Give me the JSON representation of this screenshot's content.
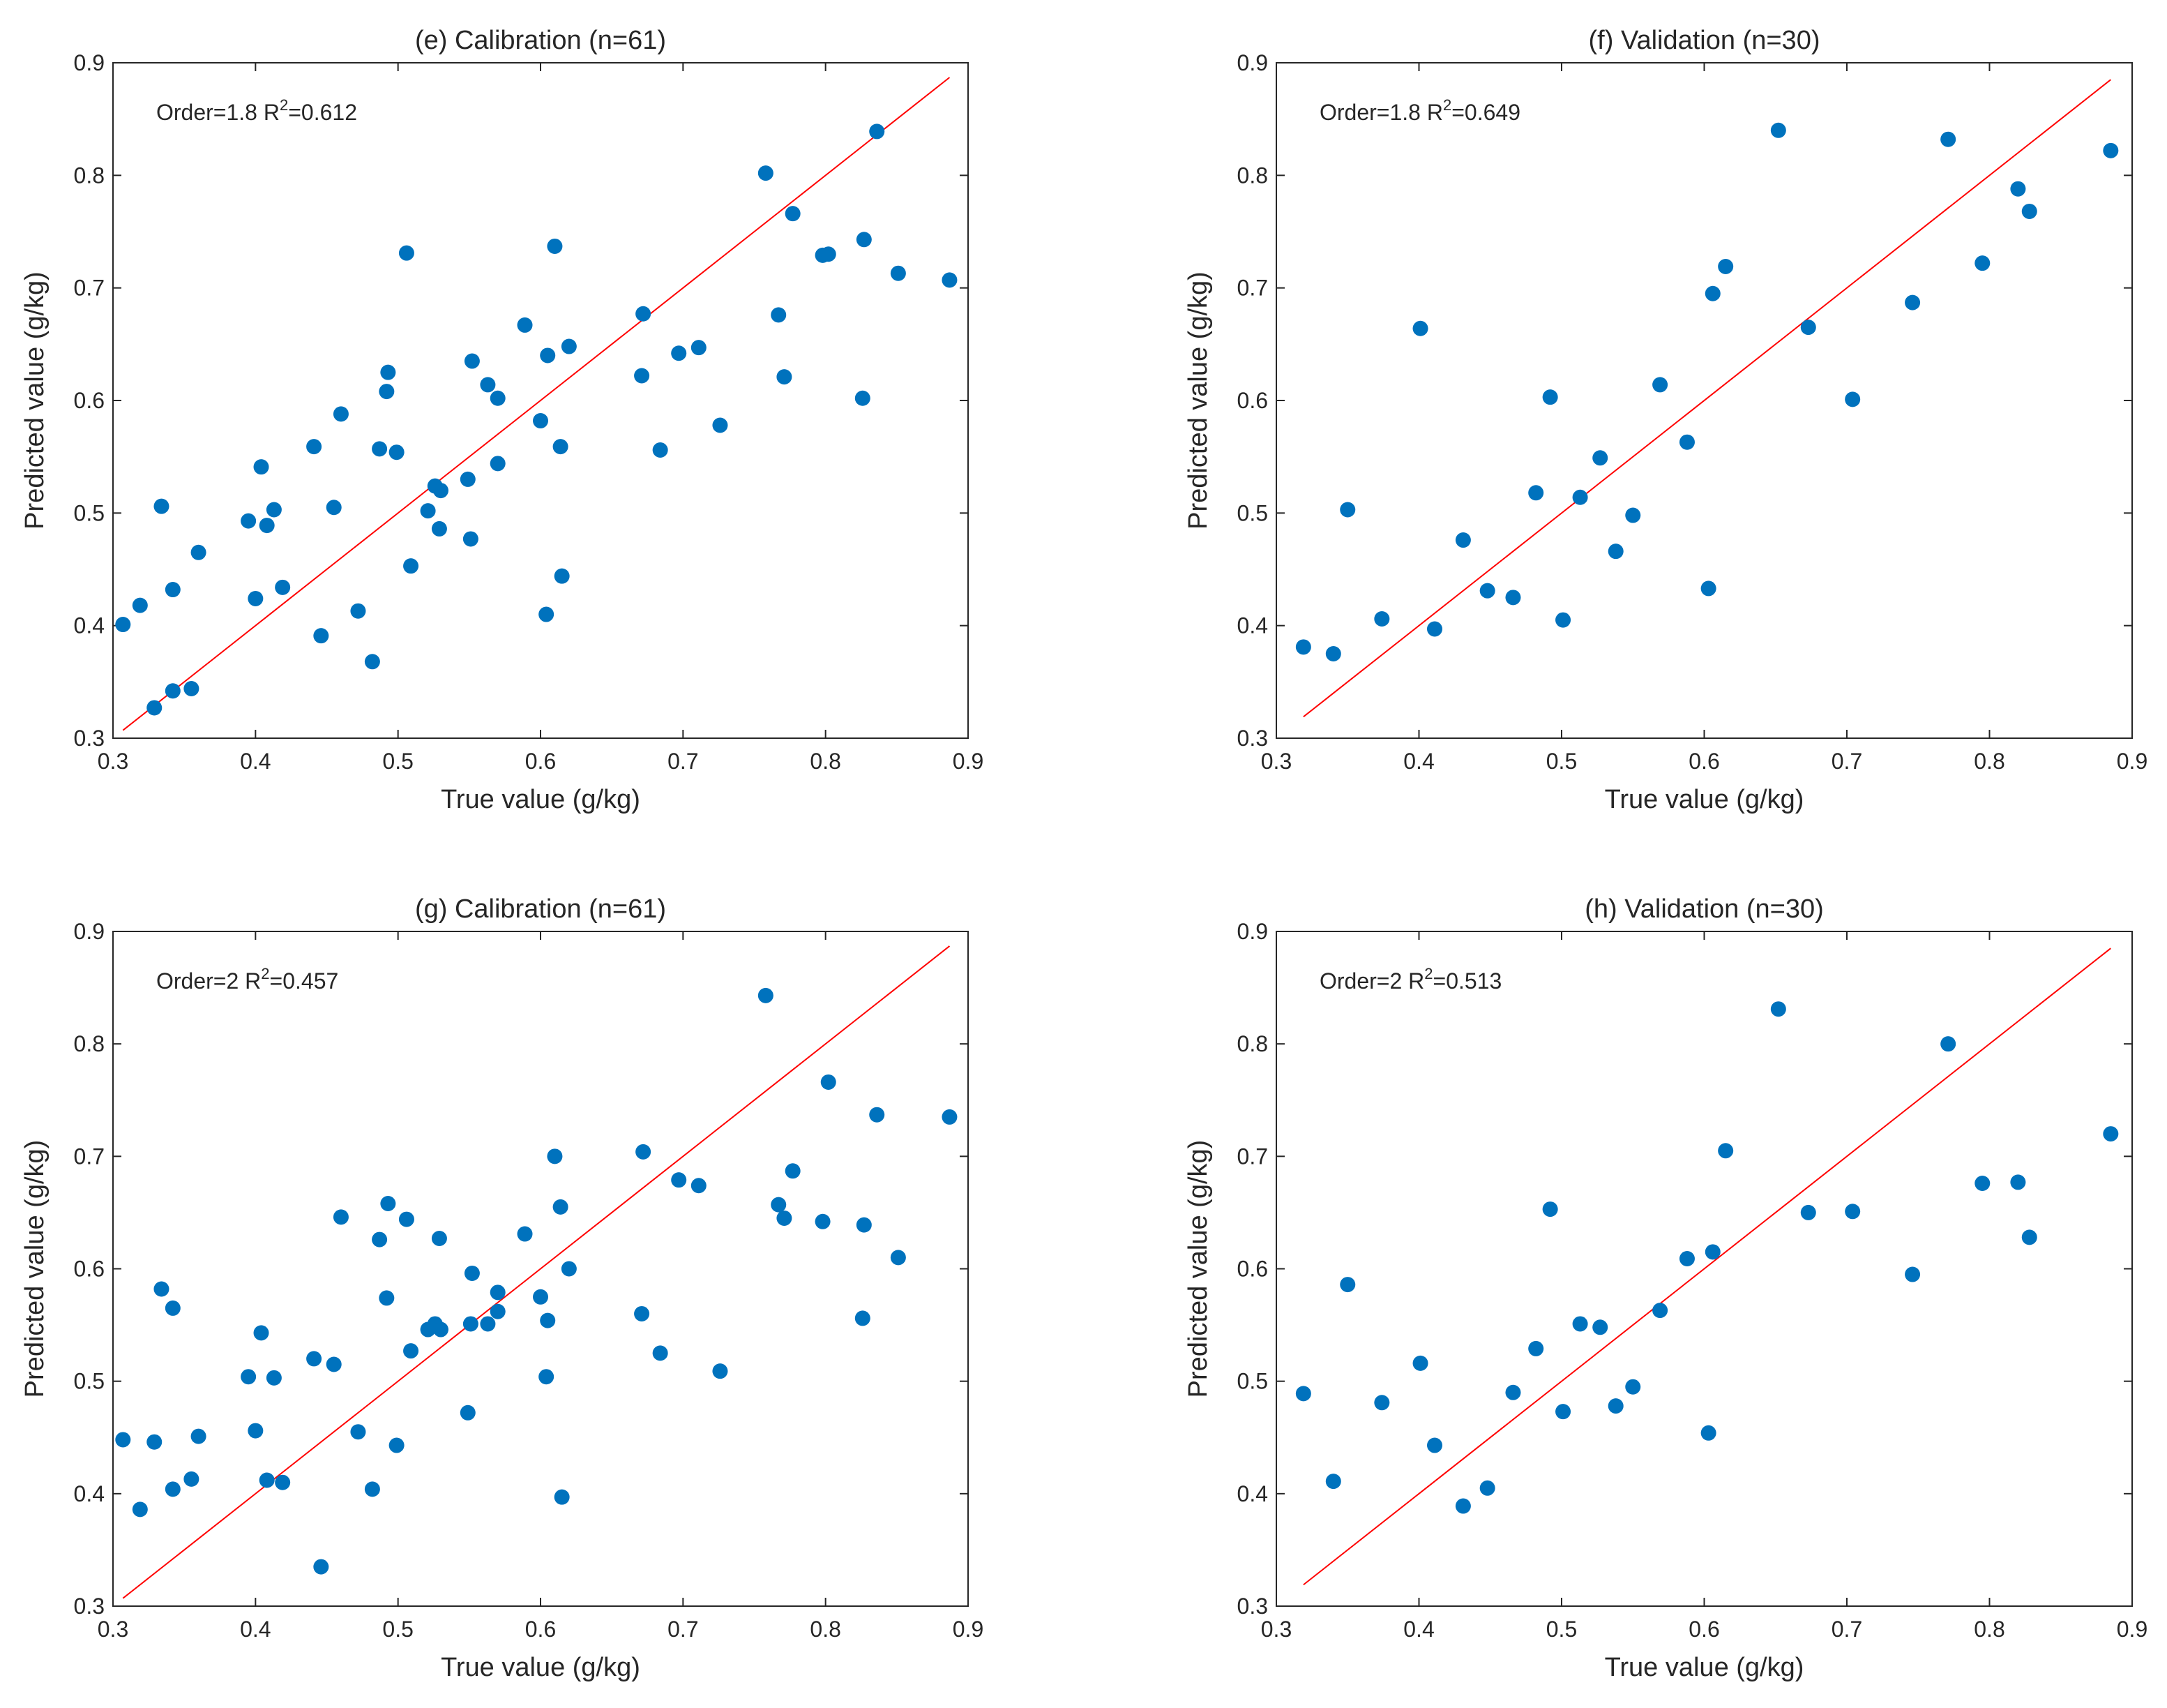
{
  "colors": {
    "marker": "#0072BD",
    "line": "#FF0000",
    "axis": "#262626"
  },
  "chart_data": [
    {
      "type": "scatter",
      "title": "(e) Calibration (n=61)",
      "xlabel": "True value (g/kg)",
      "ylabel": "Predicted value (g/kg)",
      "xlim": [
        0.3,
        0.9
      ],
      "ylim": [
        0.3,
        0.9
      ],
      "xticks": [
        "0.3",
        "0.4",
        "0.5",
        "0.6",
        "0.7",
        "0.8",
        "0.9"
      ],
      "yticks": [
        "0.3",
        "0.4",
        "0.5",
        "0.6",
        "0.7",
        "0.8",
        "0.9"
      ],
      "annotation": {
        "prefix": "Order=1.8  R",
        "sup": "2",
        "suffix": "=0.612"
      },
      "line": {
        "x": [
          0.307,
          0.887
        ],
        "y": [
          0.307,
          0.887
        ]
      },
      "points": {
        "x": [
          0.307,
          0.319,
          0.329,
          0.334,
          0.342,
          0.342,
          0.355,
          0.36,
          0.395,
          0.4,
          0.404,
          0.408,
          0.413,
          0.419,
          0.441,
          0.446,
          0.455,
          0.46,
          0.472,
          0.482,
          0.487,
          0.492,
          0.493,
          0.499,
          0.506,
          0.509,
          0.521,
          0.526,
          0.529,
          0.53,
          0.549,
          0.551,
          0.552,
          0.563,
          0.57,
          0.57,
          0.589,
          0.6,
          0.604,
          0.605,
          0.61,
          0.614,
          0.615,
          0.62,
          0.671,
          0.672,
          0.684,
          0.697,
          0.711,
          0.726,
          0.758,
          0.767,
          0.771,
          0.777,
          0.798,
          0.802,
          0.826,
          0.827,
          0.836,
          0.851,
          0.887
        ],
        "y": [
          0.401,
          0.418,
          0.327,
          0.506,
          0.342,
          0.432,
          0.344,
          0.465,
          0.493,
          0.424,
          0.541,
          0.489,
          0.503,
          0.434,
          0.559,
          0.391,
          0.505,
          0.588,
          0.413,
          0.368,
          0.557,
          0.608,
          0.625,
          0.554,
          0.731,
          0.453,
          0.502,
          0.524,
          0.486,
          0.52,
          0.53,
          0.477,
          0.635,
          0.614,
          0.602,
          0.544,
          0.667,
          0.582,
          0.41,
          0.64,
          0.737,
          0.559,
          0.444,
          0.648,
          0.622,
          0.677,
          0.556,
          0.642,
          0.647,
          0.578,
          0.802,
          0.676,
          0.621,
          0.766,
          0.729,
          0.73,
          0.602,
          0.743,
          0.839,
          0.713,
          0.707
        ]
      }
    },
    {
      "type": "scatter",
      "title": "(f) Validation (n=30)",
      "xlabel": "True value (g/kg)",
      "ylabel": "Predicted value (g/kg)",
      "xlim": [
        0.3,
        0.9
      ],
      "ylim": [
        0.3,
        0.9
      ],
      "xticks": [
        "0.3",
        "0.4",
        "0.5",
        "0.6",
        "0.7",
        "0.8",
        "0.9"
      ],
      "yticks": [
        "0.3",
        "0.4",
        "0.5",
        "0.6",
        "0.7",
        "0.8",
        "0.9"
      ],
      "annotation": {
        "prefix": "Order=1.8 R",
        "sup": "2",
        "suffix": "=0.649"
      },
      "line": {
        "x": [
          0.319,
          0.885
        ],
        "y": [
          0.319,
          0.885
        ]
      },
      "points": {
        "x": [
          0.319,
          0.34,
          0.35,
          0.374,
          0.401,
          0.411,
          0.431,
          0.448,
          0.466,
          0.482,
          0.492,
          0.501,
          0.513,
          0.527,
          0.538,
          0.55,
          0.569,
          0.588,
          0.603,
          0.606,
          0.615,
          0.652,
          0.673,
          0.704,
          0.746,
          0.771,
          0.795,
          0.82,
          0.828,
          0.885
        ],
        "y": [
          0.381,
          0.375,
          0.503,
          0.406,
          0.664,
          0.397,
          0.476,
          0.431,
          0.425,
          0.518,
          0.603,
          0.405,
          0.514,
          0.549,
          0.466,
          0.498,
          0.614,
          0.563,
          0.433,
          0.695,
          0.719,
          0.84,
          0.665,
          0.601,
          0.687,
          0.832,
          0.722,
          0.788,
          0.768,
          0.822
        ]
      }
    },
    {
      "type": "scatter",
      "title": "(g) Calibration (n=61)",
      "xlabel": "True value (g/kg)",
      "ylabel": "Predicted value (g/kg)",
      "xlim": [
        0.3,
        0.9
      ],
      "ylim": [
        0.3,
        0.9
      ],
      "xticks": [
        "0.3",
        "0.4",
        "0.5",
        "0.6",
        "0.7",
        "0.8",
        "0.9"
      ],
      "yticks": [
        "0.3",
        "0.4",
        "0.5",
        "0.6",
        "0.7",
        "0.8",
        "0.9"
      ],
      "annotation": {
        "prefix": "Order=2  R",
        "sup": "2",
        "suffix": "=0.457"
      },
      "line": {
        "x": [
          0.307,
          0.887
        ],
        "y": [
          0.307,
          0.887
        ]
      },
      "points": {
        "x": [
          0.307,
          0.319,
          0.329,
          0.334,
          0.342,
          0.342,
          0.355,
          0.36,
          0.395,
          0.4,
          0.404,
          0.408,
          0.413,
          0.419,
          0.441,
          0.446,
          0.455,
          0.46,
          0.472,
          0.482,
          0.487,
          0.492,
          0.493,
          0.499,
          0.506,
          0.509,
          0.521,
          0.526,
          0.529,
          0.53,
          0.549,
          0.551,
          0.552,
          0.563,
          0.57,
          0.57,
          0.589,
          0.6,
          0.604,
          0.605,
          0.61,
          0.614,
          0.615,
          0.62,
          0.671,
          0.672,
          0.684,
          0.697,
          0.711,
          0.726,
          0.758,
          0.767,
          0.771,
          0.777,
          0.798,
          0.802,
          0.826,
          0.827,
          0.836,
          0.851,
          0.887
        ],
        "y": [
          0.448,
          0.386,
          0.446,
          0.582,
          0.404,
          0.565,
          0.413,
          0.451,
          0.504,
          0.456,
          0.543,
          0.412,
          0.503,
          0.41,
          0.52,
          0.335,
          0.515,
          0.646,
          0.455,
          0.404,
          0.626,
          0.574,
          0.658,
          0.443,
          0.644,
          0.527,
          0.546,
          0.551,
          0.627,
          0.546,
          0.472,
          0.551,
          0.596,
          0.551,
          0.579,
          0.562,
          0.631,
          0.575,
          0.504,
          0.554,
          0.7,
          0.655,
          0.397,
          0.6,
          0.56,
          0.704,
          0.525,
          0.679,
          0.674,
          0.509,
          0.843,
          0.657,
          0.645,
          0.687,
          0.642,
          0.766,
          0.556,
          0.639,
          0.737,
          0.61,
          0.735
        ]
      }
    },
    {
      "type": "scatter",
      "title": "(h) Validation (n=30)",
      "xlabel": "True value (g/kg)",
      "ylabel": "Predicted value (g/kg)",
      "xlim": [
        0.3,
        0.9
      ],
      "ylim": [
        0.3,
        0.9
      ],
      "xticks": [
        "0.3",
        "0.4",
        "0.5",
        "0.6",
        "0.7",
        "0.8",
        "0.9"
      ],
      "yticks": [
        "0.3",
        "0.4",
        "0.5",
        "0.6",
        "0.7",
        "0.8",
        "0.9"
      ],
      "annotation": {
        "prefix": "Order=2 R",
        "sup": "2",
        "suffix": "=0.513"
      },
      "line": {
        "x": [
          0.319,
          0.885
        ],
        "y": [
          0.319,
          0.885
        ]
      },
      "points": {
        "x": [
          0.319,
          0.34,
          0.35,
          0.374,
          0.401,
          0.411,
          0.431,
          0.448,
          0.466,
          0.482,
          0.492,
          0.501,
          0.513,
          0.527,
          0.538,
          0.55,
          0.569,
          0.588,
          0.603,
          0.606,
          0.615,
          0.652,
          0.673,
          0.704,
          0.746,
          0.771,
          0.795,
          0.82,
          0.828,
          0.885
        ],
        "y": [
          0.489,
          0.411,
          0.586,
          0.481,
          0.516,
          0.443,
          0.389,
          0.405,
          0.49,
          0.529,
          0.653,
          0.473,
          0.551,
          0.548,
          0.478,
          0.495,
          0.563,
          0.609,
          0.454,
          0.615,
          0.705,
          0.831,
          0.65,
          0.651,
          0.595,
          0.8,
          0.676,
          0.677,
          0.628,
          0.72
        ]
      }
    }
  ]
}
